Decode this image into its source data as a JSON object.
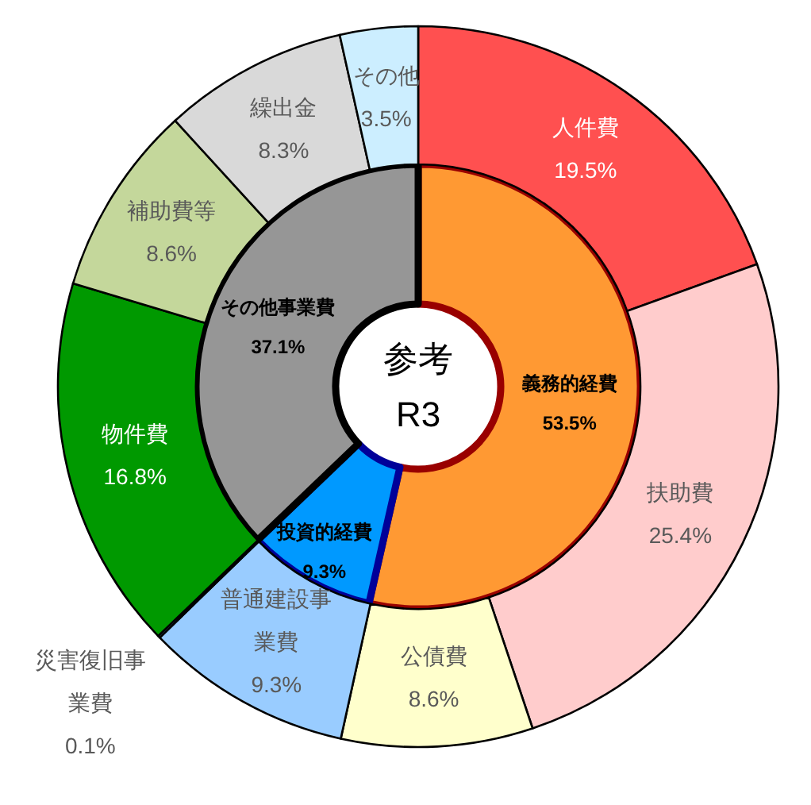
{
  "chart_data": [
    {
      "type": "donut",
      "categories": [
        "義務的経費",
        "投資的経費",
        "その他事業費"
      ],
      "values": [
        53.5,
        9.3,
        37.1
      ],
      "colors": [
        "#ff9933",
        "#0099ff",
        "#969696"
      ],
      "value_labels": [
        "53.5%",
        "9.3%",
        "37.1%"
      ],
      "annotations": [
        "参考",
        "R3"
      ]
    },
    {
      "type": "donut",
      "categories": [
        "人件費",
        "扶助費",
        "公債費",
        "普通建設事業費",
        "災害復旧事業費",
        "物件費",
        "補助費等",
        "繰出金",
        "その他"
      ],
      "values": [
        19.5,
        25.4,
        8.6,
        9.3,
        0.1,
        16.8,
        8.6,
        8.3,
        3.5
      ],
      "colors": [
        "#ff5050",
        "#ffcccc",
        "#ffffcc",
        "#99ccff",
        "#6699ff",
        "#009900",
        "#c4d79b",
        "#d9d9d9",
        "#cceeff"
      ],
      "value_labels": [
        "19.5%",
        "25.4%",
        "8.6%",
        "9.3%",
        "0.1%",
        "16.8%",
        "8.6%",
        "8.3%",
        "3.5%"
      ]
    }
  ]
}
